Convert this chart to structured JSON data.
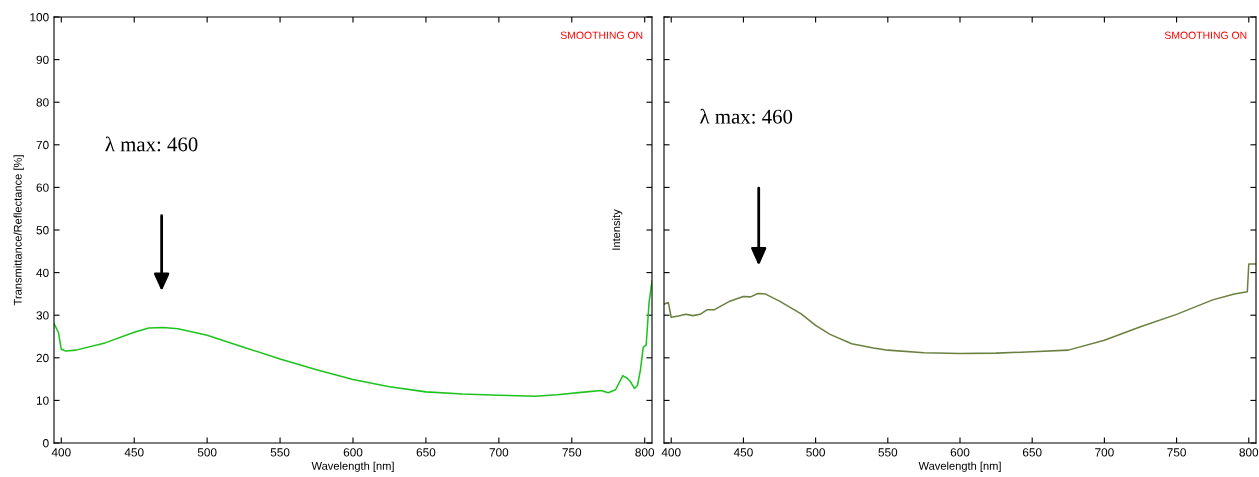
{
  "chart_data": [
    {
      "type": "line",
      "xlabel": "Wavelength [nm]",
      "ylabel": "Transmittance/Reflectance [%]",
      "annotations": [
        "SMOOTHING ON",
        "λ max: 460"
      ],
      "x": [
        395,
        398,
        400,
        403,
        410,
        430,
        450,
        460,
        470,
        480,
        500,
        525,
        550,
        575,
        600,
        625,
        650,
        675,
        700,
        725,
        740,
        760,
        770,
        775,
        780,
        785,
        788,
        790,
        793,
        795,
        797,
        799,
        801,
        803,
        805
      ],
      "series": [
        {
          "color": "#1ec31e",
          "values": [
            28,
            26,
            22,
            21.6,
            21.8,
            23.5,
            26,
            27,
            27.1,
            26.8,
            25.3,
            22.5,
            19.7,
            17.2,
            14.9,
            13.2,
            12,
            11.5,
            11.2,
            11,
            11.3,
            12,
            12.3,
            11.8,
            12.5,
            15.8,
            15.2,
            14.5,
            12.8,
            13.5,
            17,
            22.5,
            23,
            33,
            38
          ]
        }
      ],
      "xlim": [
        395,
        805
      ],
      "xticks": [
        400,
        450,
        500,
        550,
        600,
        650,
        700,
        750,
        800
      ],
      "ylim": [
        0,
        100
      ],
      "yticks": [
        0,
        10,
        20,
        30,
        40,
        50,
        60,
        70,
        80,
        90,
        100
      ],
      "grid": false,
      "legend": false
    },
    {
      "type": "line",
      "xlabel": "Wavelength [nm]",
      "ylabel": "Intensity",
      "annotations": [
        "SMOOTHING ON",
        "λ max: 460"
      ],
      "x": [
        395,
        398,
        400,
        405,
        410,
        415,
        420,
        425,
        430,
        440,
        450,
        455,
        460,
        465,
        475,
        490,
        500,
        510,
        525,
        540,
        550,
        575,
        600,
        625,
        650,
        675,
        700,
        725,
        750,
        775,
        790,
        799,
        800,
        805
      ],
      "series": [
        {
          "color": "#6b8040",
          "values": [
            32.6,
            33,
            29.5,
            29.8,
            30.2,
            29.9,
            30.2,
            31.3,
            31.3,
            33.2,
            34.4,
            34.3,
            35.1,
            35,
            33.3,
            30.3,
            27.6,
            25.5,
            23.3,
            22.3,
            21.8,
            21.2,
            21,
            21.1,
            21.4,
            21.8,
            24.1,
            27.3,
            30.2,
            33.6,
            35,
            35.5,
            42,
            42
          ]
        }
      ],
      "xlim": [
        395,
        805
      ],
      "xticks": [
        400,
        450,
        500,
        550,
        600,
        650,
        700,
        750,
        800
      ],
      "ylim": [
        0,
        100
      ],
      "yticks": [
        0,
        10,
        20,
        30,
        40,
        50,
        60,
        70,
        80,
        90,
        100
      ],
      "tick_labels": "x",
      "grid": false,
      "legend": false
    }
  ]
}
